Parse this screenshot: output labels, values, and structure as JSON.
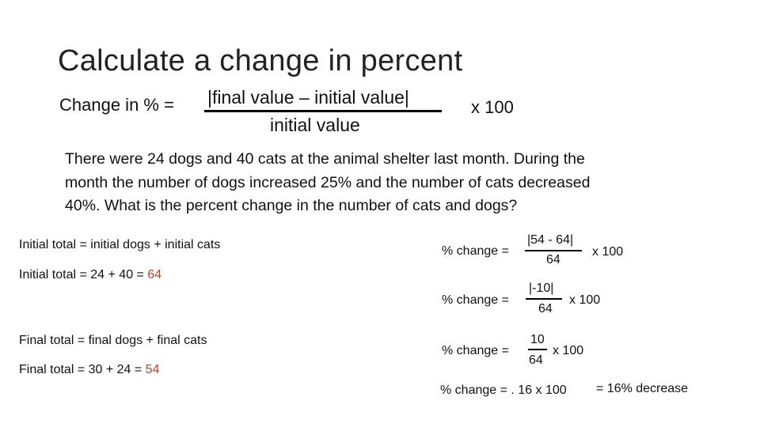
{
  "title": "Calculate a change in percent",
  "formula": {
    "label": "Change in % =",
    "numerator": "|final value – initial value|",
    "denominator": "initial value",
    "multiplier": "x 100"
  },
  "problem": {
    "line1": "There were 24 dogs and 40 cats at the animal shelter last month.  During the",
    "line2": "month the number of dogs increased 25% and the number of cats decreased",
    "line3": "40%.  What is the percent change in the number of cats and dogs?"
  },
  "left": {
    "initial_formula": "Initial total = initial dogs + initial cats",
    "initial_calc_prefix": "Initial total = 24 + 40 = ",
    "initial_result": "64",
    "final_formula": "Final total = final dogs + final cats",
    "final_calc_prefix": "Final total = 30 + 24 = ",
    "final_result": "54"
  },
  "right": {
    "step1": {
      "label": "% change =",
      "numerator": "|54 - 64|",
      "denominator": "64",
      "multiplier": "x 100"
    },
    "step2": {
      "label": "% change =",
      "numerator": "|-10|",
      "denominator": "64",
      "multiplier": "x 100"
    },
    "step3": {
      "label": "% change =",
      "numerator": "10",
      "denominator": "64",
      "multiplier": "x 100"
    },
    "step4": {
      "label": "% change = . 16 x 100",
      "result": "= 16% decrease"
    }
  },
  "colors": {
    "highlight": "#c0392b"
  }
}
